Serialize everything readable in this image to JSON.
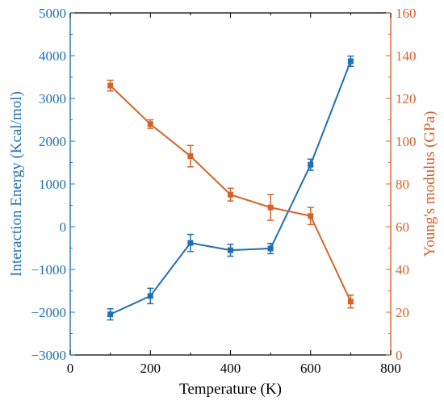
{
  "chart_data": {
    "type": "line",
    "xlabel": "Temperature (K)",
    "xlim": [
      0,
      800
    ],
    "xticks": [
      "0",
      "200",
      "400",
      "600",
      "800"
    ],
    "y_left": {
      "label": "Interaction Energy (Kcal/mol)",
      "lim": [
        -3000,
        5000
      ],
      "ticks": [
        "−3000",
        "−2000",
        "−1000",
        "0",
        "1000",
        "2000",
        "3000",
        "4000",
        "5000"
      ],
      "color": "#1f6fb2"
    },
    "y_right": {
      "label": "Young's modulus (GPa)",
      "lim": [
        0,
        160
      ],
      "ticks": [
        "0",
        "20",
        "40",
        "60",
        "80",
        "100",
        "120",
        "140",
        "160"
      ],
      "color": "#d4622a"
    },
    "grid": false,
    "legend": "none",
    "series": [
      {
        "axis": "left",
        "color": "#1f6fb2",
        "x": [
          100,
          200,
          300,
          400,
          500,
          600,
          700
        ],
        "y": [
          -2050,
          -1620,
          -380,
          -550,
          -510,
          1450,
          3870
        ],
        "err": [
          130,
          180,
          200,
          140,
          120,
          130,
          120
        ]
      },
      {
        "axis": "right",
        "color": "#d4622a",
        "x": [
          100,
          200,
          300,
          400,
          500,
          600,
          700
        ],
        "y": [
          126,
          108,
          93,
          75,
          69,
          65,
          25
        ],
        "err": [
          2.5,
          2,
          5,
          3,
          6,
          4,
          3
        ]
      }
    ]
  }
}
